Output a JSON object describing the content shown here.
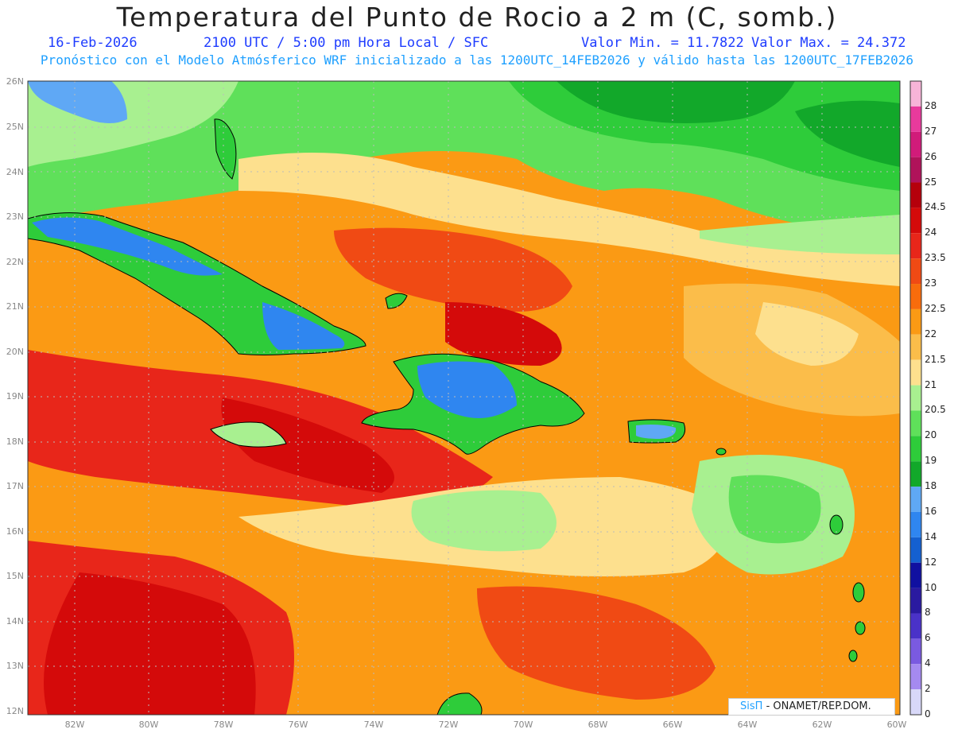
{
  "header": {
    "title": "Temperatura del Punto de Rocio a 2 m (C, somb.)",
    "date": "16-Feb-2026",
    "time": "2100 UTC / 5:00 pm Hora Local / SFC",
    "min": "Valor Min. = 11.7822",
    "max": "Valor Max. = 24.372",
    "description": "Pronóstico con el Modelo Atmósferico WRF inicializado a las 1200UTC_14FEB2026 y válido hasta las  1200UTC_17FEB2026"
  },
  "axes": {
    "lat_labels": [
      "26N",
      "25N",
      "24N",
      "23N",
      "22N",
      "21N",
      "20N",
      "19N",
      "18N",
      "17N",
      "16N",
      "15N",
      "14N",
      "13N",
      "12N"
    ],
    "lon_labels": [
      "82W",
      "80W",
      "78W",
      "76W",
      "74W",
      "72W",
      "70W",
      "68W",
      "66W",
      "64W",
      "62W",
      "60W"
    ]
  },
  "colorbar": {
    "labels": [
      "28",
      "27",
      "26",
      "25",
      "24.5",
      "24",
      "23.5",
      "23",
      "22.5",
      "22",
      "21.5",
      "21",
      "20.5",
      "20",
      "19",
      "18",
      "16",
      "14",
      "12",
      "10",
      "8",
      "6",
      "4",
      "2",
      "0"
    ],
    "colors": [
      "#f7b4d8",
      "#e83a9c",
      "#d11b7a",
      "#b0135a",
      "#b5000b",
      "#d40a0a",
      "#e8261a",
      "#f04a14",
      "#f86c0c",
      "#fb9a14",
      "#fbbd4a",
      "#fde08e",
      "#a8f090",
      "#5fe05a",
      "#2ecc3a",
      "#12a82a",
      "#5fa8f5",
      "#2f86f0",
      "#1460d0",
      "#1010a0",
      "#2a1aa0",
      "#4a32c8",
      "#7a5ae0",
      "#a58af0",
      "#d8d8f8"
    ]
  },
  "logo": {
    "brand": "SisΠ",
    "text": "- ONAMET/REP.DOM."
  }
}
